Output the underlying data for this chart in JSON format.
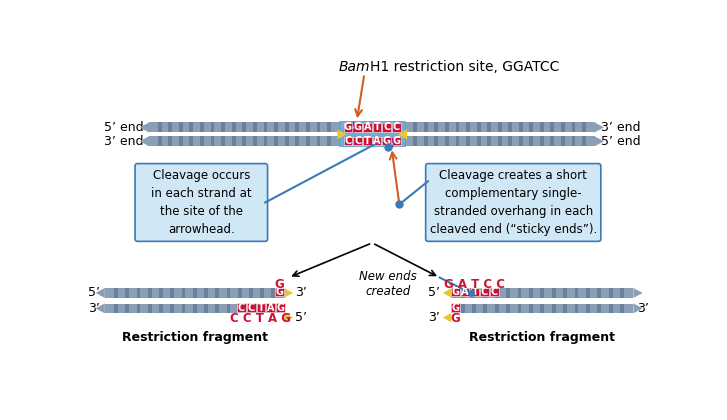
{
  "bg_color": "#ffffff",
  "gray_main": "#8a9fb5",
  "gray_stripe": "#6b8099",
  "red_box": "#cc1133",
  "yellow": "#e8c830",
  "blue_bg": "#5b9ec9",
  "blue_annot": "#d0e8f5",
  "blue_line": "#3a7ab5",
  "orange": "#d06020",
  "title_bam": "Bam",
  "title_rest": "H1 restriction site, GGATCC",
  "seq_top": "GGATCC",
  "seq_bot": "CCTAGG",
  "label_5end_left": "5’ end",
  "label_3end_left": "3’ end",
  "label_3end_right": "3’ end",
  "label_5end_right": "5’ end",
  "box1_text": "Cleavage occurs\nin each strand at\nthe site of the\narrowhead.",
  "box2_text": "Cleavage creates a short\ncomplementary single-\nstranded overhang in each\ncleaved end (“sticky ends”).",
  "new_ends_text": "New ends\ncreated",
  "frag_label": "Restriction fragment",
  "left_top_letter": "G",
  "left_bot_seq": "CCTAG",
  "right_top_seq": "GATCC",
  "right_bot_letter": "G"
}
